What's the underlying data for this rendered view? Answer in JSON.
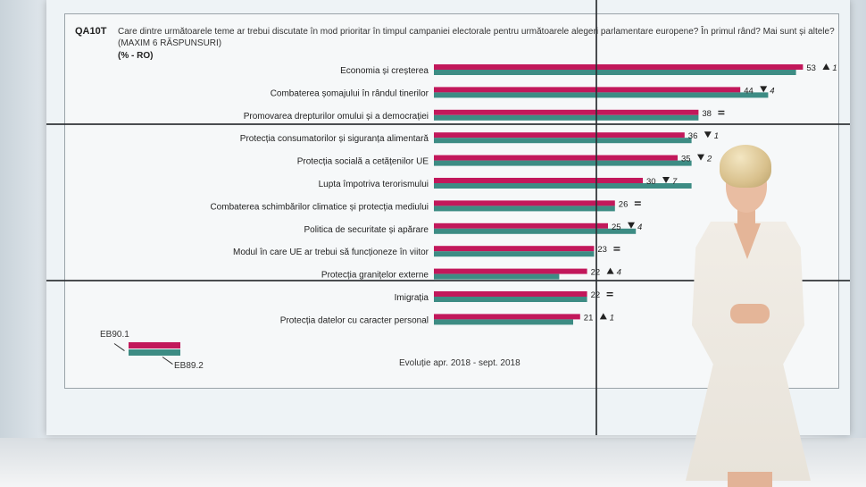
{
  "question": {
    "code": "QA10T",
    "text": "Care dintre următoarele teme ar trebui discutate în mod prioritar în timpul campaniei electorale pentru următoarele alegeri parlamentare europene? În primul rând? Mai sunt și altele? (MAXIM 6 RĂSPUNSURI)",
    "unit": "(% - RO)"
  },
  "footer_note": "Evoluție apr. 2018 - sept. 2018",
  "colors": {
    "current": "#c2185b",
    "previous": "#3d8c84",
    "up": "#222222",
    "down": "#222222"
  },
  "chart_data": {
    "type": "bar",
    "orientation": "horizontal",
    "categories": [
      "Economia și creșterea",
      "Combaterea șomajului în rândul tinerilor",
      "Promovarea drepturilor omului și a democrației",
      "Protecția consumatorilor și siguranța alimentară",
      "Protecția socială a cetățenilor UE",
      "Lupta împotriva terorismului",
      "Combaterea schimbărilor climatice și protecția mediului",
      "Politica de securitate și apărare",
      "Modul în care UE ar trebui să funcționeze în viitor",
      "Protecția granițelor externe",
      "Imigrația",
      "Protecția datelor cu caracter personal"
    ],
    "series": [
      {
        "name": "EB90.1",
        "values": [
          53,
          44,
          38,
          36,
          35,
          30,
          26,
          25,
          23,
          22,
          22,
          21
        ]
      },
      {
        "name": "EB89.2",
        "values": [
          52,
          48,
          38,
          37,
          37,
          37,
          26,
          29,
          23,
          18,
          22,
          20
        ]
      }
    ],
    "changes": [
      {
        "dir": "up",
        "delta": "1"
      },
      {
        "dir": "down",
        "delta": "4"
      },
      {
        "dir": "eq",
        "delta": ""
      },
      {
        "dir": "down",
        "delta": "1"
      },
      {
        "dir": "down",
        "delta": "2"
      },
      {
        "dir": "down",
        "delta": "7"
      },
      {
        "dir": "eq",
        "delta": ""
      },
      {
        "dir": "down",
        "delta": "4"
      },
      {
        "dir": "eq",
        "delta": ""
      },
      {
        "dir": "up",
        "delta": "4"
      },
      {
        "dir": "eq",
        "delta": ""
      },
      {
        "dir": "up",
        "delta": "1"
      }
    ],
    "xlim": [
      0,
      60
    ],
    "legend": {
      "current": "EB90.1",
      "previous": "EB89.2",
      "placement": "bottom-left"
    }
  }
}
